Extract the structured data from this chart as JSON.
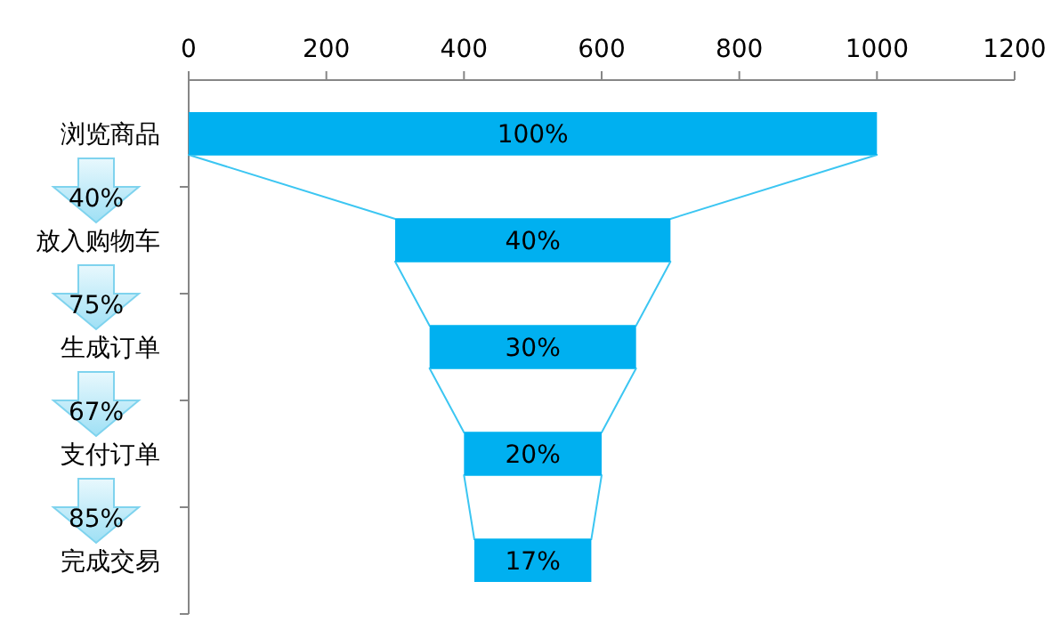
{
  "chart_data": {
    "type": "bar",
    "orientation": "horizontal",
    "categories": [
      "浏览商品",
      "放入购物车",
      "生成订单",
      "支付订单",
      "完成交易"
    ],
    "values": [
      1000,
      400,
      300,
      200,
      170
    ],
    "base": [
      0,
      300,
      350,
      400,
      415
    ],
    "color": "#00b0f0",
    "xlim": [
      0,
      1200
    ],
    "xticks": [
      0,
      200,
      400,
      600,
      800,
      1000,
      1200
    ],
    "grid": false,
    "legend": false,
    "annotations": [
      "100%",
      "40%",
      "30%",
      "20%",
      "17%",
      "40%",
      "75%",
      "67%",
      "85%"
    ]
  }
}
